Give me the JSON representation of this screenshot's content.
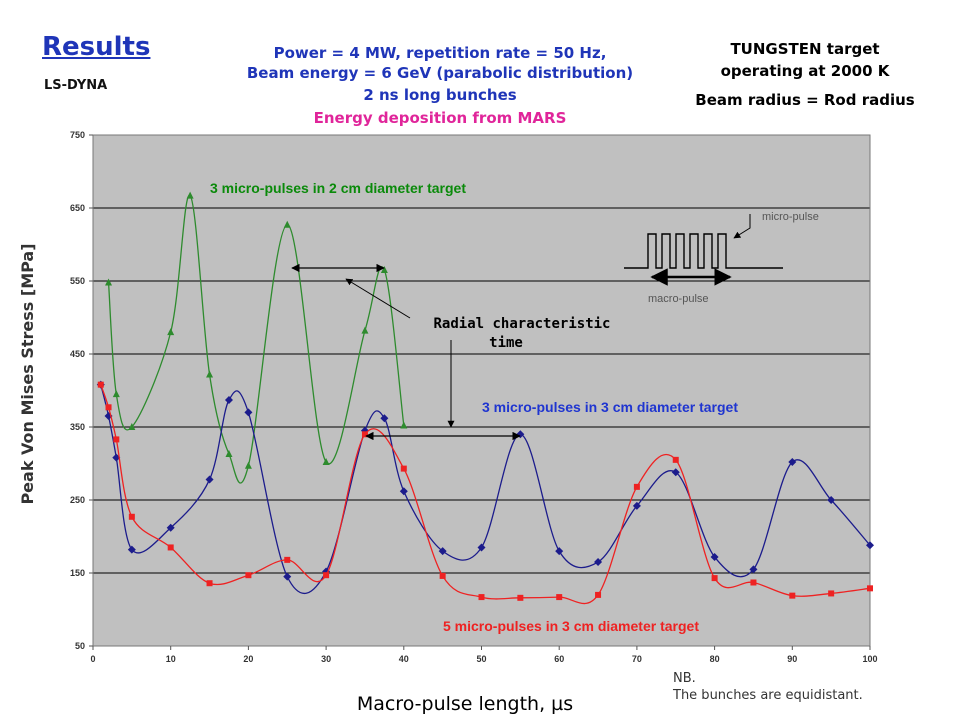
{
  "header": {
    "title": "Results",
    "subtitle": "LS-DYNA",
    "lines": [
      "Power = 4 MW, repetition rate = 50 Hz,",
      "Beam energy = 6 GeV (parabolic distribution)",
      "2 ns long bunches",
      "Energy deposition from MARS"
    ],
    "right_lines": [
      "TUNGSTEN target",
      "operating at 2000 K",
      "Beam radius = Rod radius"
    ]
  },
  "notes": [
    "NB.",
    "The bunches are equidistant."
  ],
  "colors": {
    "plot_bg": "#c0c0c0",
    "gridline": "#000000",
    "green": "#2e8b2e",
    "blue": "#1c1c8c",
    "red": "#ee2222",
    "green_label": "#0a8a0a",
    "blue_label": "#1f35d0",
    "red_label": "#ee2222"
  },
  "chart_data": {
    "type": "line",
    "xlabel": "Macro-pulse length, µs",
    "ylabel": "Peak Von Mises Stress [MPa]",
    "xlim": [
      0,
      100
    ],
    "ylim": [
      50,
      750
    ],
    "xticks": [
      0,
      10,
      20,
      30,
      40,
      50,
      60,
      70,
      80,
      90,
      100
    ],
    "yticks": [
      50,
      150,
      250,
      350,
      450,
      550,
      650,
      750
    ],
    "grid": "horizontal",
    "series": [
      {
        "name": "3 micro-pulses in 2 cm diameter target",
        "color": "green",
        "marker": "triangle",
        "x": [
          2,
          3,
          5,
          10,
          12.5,
          15,
          17.5,
          20,
          25,
          30,
          35,
          37.5,
          40
        ],
        "y": [
          548,
          395,
          350,
          480,
          667,
          422,
          313,
          297,
          627,
          302,
          482,
          565,
          352
        ]
      },
      {
        "name": "3 micro-pulses in 3 cm diameter target",
        "color": "blue",
        "marker": "diamond",
        "x": [
          1,
          2,
          3,
          5,
          10,
          15,
          17.5,
          20,
          25,
          30,
          35,
          37.5,
          40,
          45,
          50,
          55,
          60,
          65,
          70,
          75,
          80,
          85,
          90,
          95,
          100
        ],
        "y": [
          408,
          365,
          308,
          182,
          212,
          278,
          387,
          370,
          145,
          152,
          345,
          362,
          262,
          180,
          185,
          340,
          180,
          165,
          242,
          288,
          172,
          155,
          302,
          250,
          188
        ]
      },
      {
        "name": "5 micro-pulses in 3 cm diameter target",
        "color": "red",
        "marker": "square",
        "x": [
          1,
          2,
          3,
          5,
          10,
          15,
          20,
          25,
          30,
          35,
          40,
          45,
          50,
          55,
          60,
          65,
          70,
          75,
          80,
          85,
          90,
          95,
          100
        ],
        "y": [
          408,
          377,
          333,
          227,
          185,
          136,
          147,
          168,
          147,
          340,
          293,
          146,
          117,
          116,
          117,
          120,
          268,
          305,
          143,
          137,
          119,
          122,
          129
        ]
      }
    ],
    "annotations": {
      "green_label": "3 micro-pulses in 2 cm diameter target",
      "blue_label": "3 micro-pulses in 3 cm diameter target",
      "red_label": "5 micro-pulses in 3 cm diameter target",
      "radial_line1": "Radial characteristic",
      "radial_line2": "time",
      "micro_pulse": "micro-pulse",
      "macro_pulse": "macro-pulse"
    }
  }
}
